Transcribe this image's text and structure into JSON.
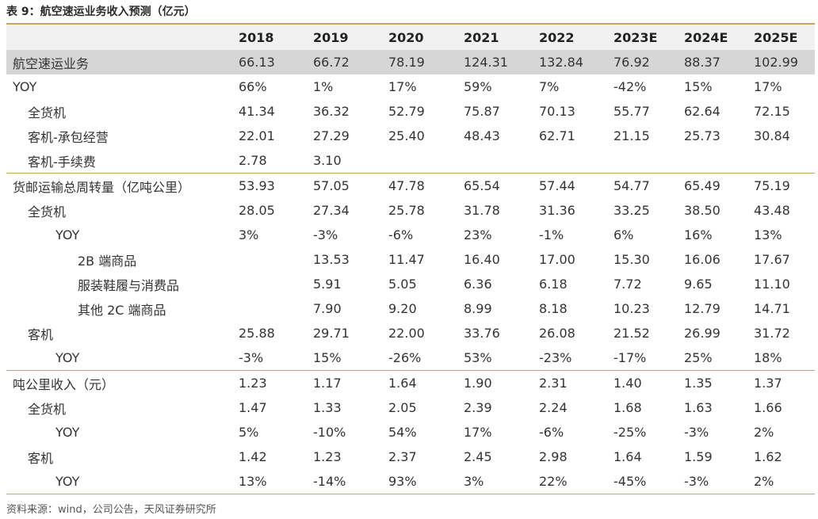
{
  "title": "表 9：航空速运业务收入预测（亿元）",
  "header": {
    "label": "",
    "years": [
      "2018",
      "2019",
      "2020",
      "2021",
      "2022",
      "2023E",
      "2024E",
      "2025E"
    ]
  },
  "rows": [
    {
      "label": "航空速运业务",
      "values": [
        "66.13",
        "66.72",
        "78.19",
        "124.31",
        "132.84",
        "76.92",
        "88.37",
        "102.99"
      ]
    },
    {
      "label": "YOY",
      "values": [
        "66%",
        "1%",
        "17%",
        "59%",
        "7%",
        "-42%",
        "15%",
        "17%"
      ]
    },
    {
      "label": "全货机",
      "values": [
        "41.34",
        "36.32",
        "52.79",
        "75.87",
        "70.13",
        "55.77",
        "62.64",
        "72.15"
      ]
    },
    {
      "label": "客机-承包经营",
      "values": [
        "22.01",
        "27.29",
        "25.40",
        "48.43",
        "62.71",
        "21.15",
        "25.73",
        "30.84"
      ]
    },
    {
      "label": "客机-手续费",
      "values": [
        "2.78",
        "3.10",
        "",
        "",
        "",
        "",
        "",
        ""
      ]
    },
    {
      "label": "货邮运输总周转量（亿吨公里）",
      "values": [
        "53.93",
        "57.05",
        "47.78",
        "65.54",
        "57.44",
        "54.77",
        "65.49",
        "75.19"
      ]
    },
    {
      "label": "全货机",
      "values": [
        "28.05",
        "27.34",
        "25.78",
        "31.78",
        "31.36",
        "33.25",
        "38.50",
        "43.48"
      ]
    },
    {
      "label": "YOY",
      "values": [
        "3%",
        "-3%",
        "-6%",
        "23%",
        "-1%",
        "6%",
        "16%",
        "13%"
      ]
    },
    {
      "label": "2B 端商品",
      "values": [
        "",
        "13.53",
        "11.47",
        "16.40",
        "17.00",
        "15.30",
        "16.06",
        "17.67"
      ]
    },
    {
      "label": "服装鞋履与消费品",
      "values": [
        "",
        "5.91",
        "5.05",
        "6.36",
        "6.18",
        "7.72",
        "9.65",
        "11.10"
      ]
    },
    {
      "label": "其他 2C 端商品",
      "values": [
        "",
        "7.90",
        "9.20",
        "8.99",
        "8.18",
        "10.23",
        "12.79",
        "14.71"
      ]
    },
    {
      "label": "客机",
      "values": [
        "25.88",
        "29.71",
        "22.00",
        "33.76",
        "26.08",
        "21.52",
        "26.99",
        "31.72"
      ]
    },
    {
      "label": "YOY",
      "values": [
        "-3%",
        "15%",
        "-26%",
        "53%",
        "-23%",
        "-17%",
        "25%",
        "18%"
      ]
    },
    {
      "label": "吨公里收入（元）",
      "values": [
        "1.23",
        "1.17",
        "1.64",
        "1.90",
        "2.31",
        "1.40",
        "1.35",
        "1.37"
      ]
    },
    {
      "label": "全货机",
      "values": [
        "1.47",
        "1.33",
        "2.05",
        "2.39",
        "2.24",
        "1.68",
        "1.63",
        "1.66"
      ]
    },
    {
      "label": "YOY",
      "values": [
        "5%",
        "-10%",
        "54%",
        "17%",
        "-6%",
        "-25%",
        "-3%",
        "2%"
      ]
    },
    {
      "label": "客机",
      "values": [
        "1.42",
        "1.23",
        "2.37",
        "2.45",
        "2.98",
        "1.64",
        "1.59",
        "1.62"
      ]
    },
    {
      "label": "YOY",
      "values": [
        "13%",
        "-14%",
        "93%",
        "3%",
        "22%",
        "-45%",
        "-3%",
        "2%"
      ]
    }
  ],
  "source": "资料来源：wind，公司公告，天风证券研究所",
  "colors": {
    "accent_line": "#c8a46d",
    "highlight_row": "#d6d6d6",
    "header_bg": "#f1f1f1"
  }
}
